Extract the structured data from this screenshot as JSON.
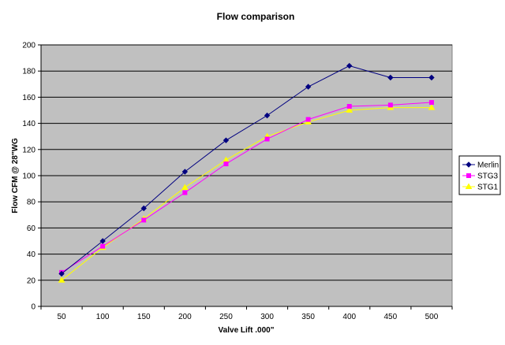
{
  "chart_data": {
    "type": "line",
    "title": "Flow comparison",
    "xlabel": "Valve Lift .000\"",
    "ylabel": "Flow CFM @ 28\"WG",
    "categories": [
      "50",
      "100",
      "150",
      "200",
      "250",
      "300",
      "350",
      "400",
      "450",
      "500"
    ],
    "ylim": [
      0,
      200
    ],
    "yticks": [
      "0",
      "20",
      "40",
      "60",
      "80",
      "100",
      "120",
      "140",
      "160",
      "180",
      "200"
    ],
    "grid": true,
    "legend_position": "right",
    "plot_background": "#c0c0c0",
    "series": [
      {
        "name": "Merlin",
        "color": "#000080",
        "marker": "diamond",
        "values": [
          25,
          50,
          75,
          103,
          127,
          146,
          168,
          184,
          175,
          175
        ]
      },
      {
        "name": "STG3",
        "color": "#ff00ff",
        "marker": "square",
        "values": [
          26,
          46,
          66,
          87,
          109,
          128,
          143,
          153,
          154,
          156
        ]
      },
      {
        "name": "STG1",
        "color": "#ffff00",
        "marker": "triangle",
        "values": [
          20,
          45,
          67,
          91,
          112,
          130,
          141,
          150,
          152,
          152
        ]
      }
    ]
  }
}
